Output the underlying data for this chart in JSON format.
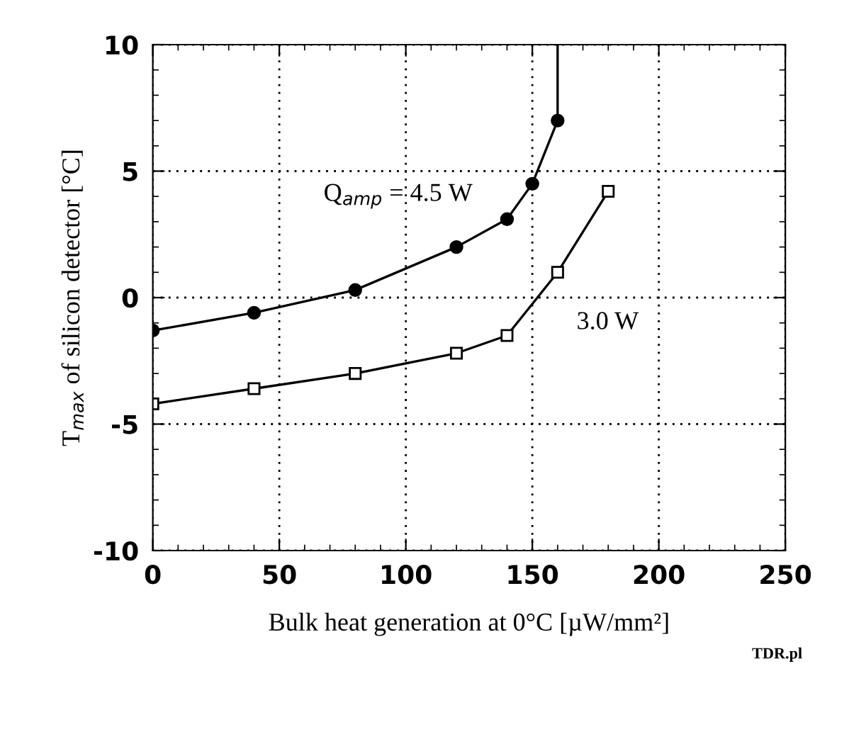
{
  "chart_data": {
    "type": "line",
    "xlabel": "Bulk heat generation at 0°C [µW/mm²]",
    "ylabel": "T$_{max}$ of silicon detector [°C]",
    "xlim": [
      0,
      250
    ],
    "xticks": [
      0,
      50,
      100,
      150,
      200,
      250
    ],
    "ylim": [
      -10,
      10
    ],
    "yticks": [
      -10,
      -5,
      0,
      5,
      10
    ],
    "grid": true,
    "legend": false,
    "line_style": "solid",
    "series": [
      {
        "color": "#000000",
        "marker": "circle",
        "x": [
          0,
          40,
          80,
          120,
          140,
          150,
          160,
          160
        ],
        "values": [
          -1.3,
          -0.6,
          0.3,
          2.0,
          3.1,
          4.5,
          7.0,
          10
        ]
      },
      {
        "color": "#000000",
        "marker": "square",
        "x": [
          0,
          40,
          80,
          120,
          140,
          160,
          180
        ],
        "values": [
          -4.2,
          -3.6,
          -3.0,
          -2.2,
          -1.5,
          1.0,
          4.2
        ]
      }
    ],
    "annotations": [
      "Q$_{amp}$ = 4.5 W",
      "3.0 W",
      "TDR.pl"
    ]
  }
}
